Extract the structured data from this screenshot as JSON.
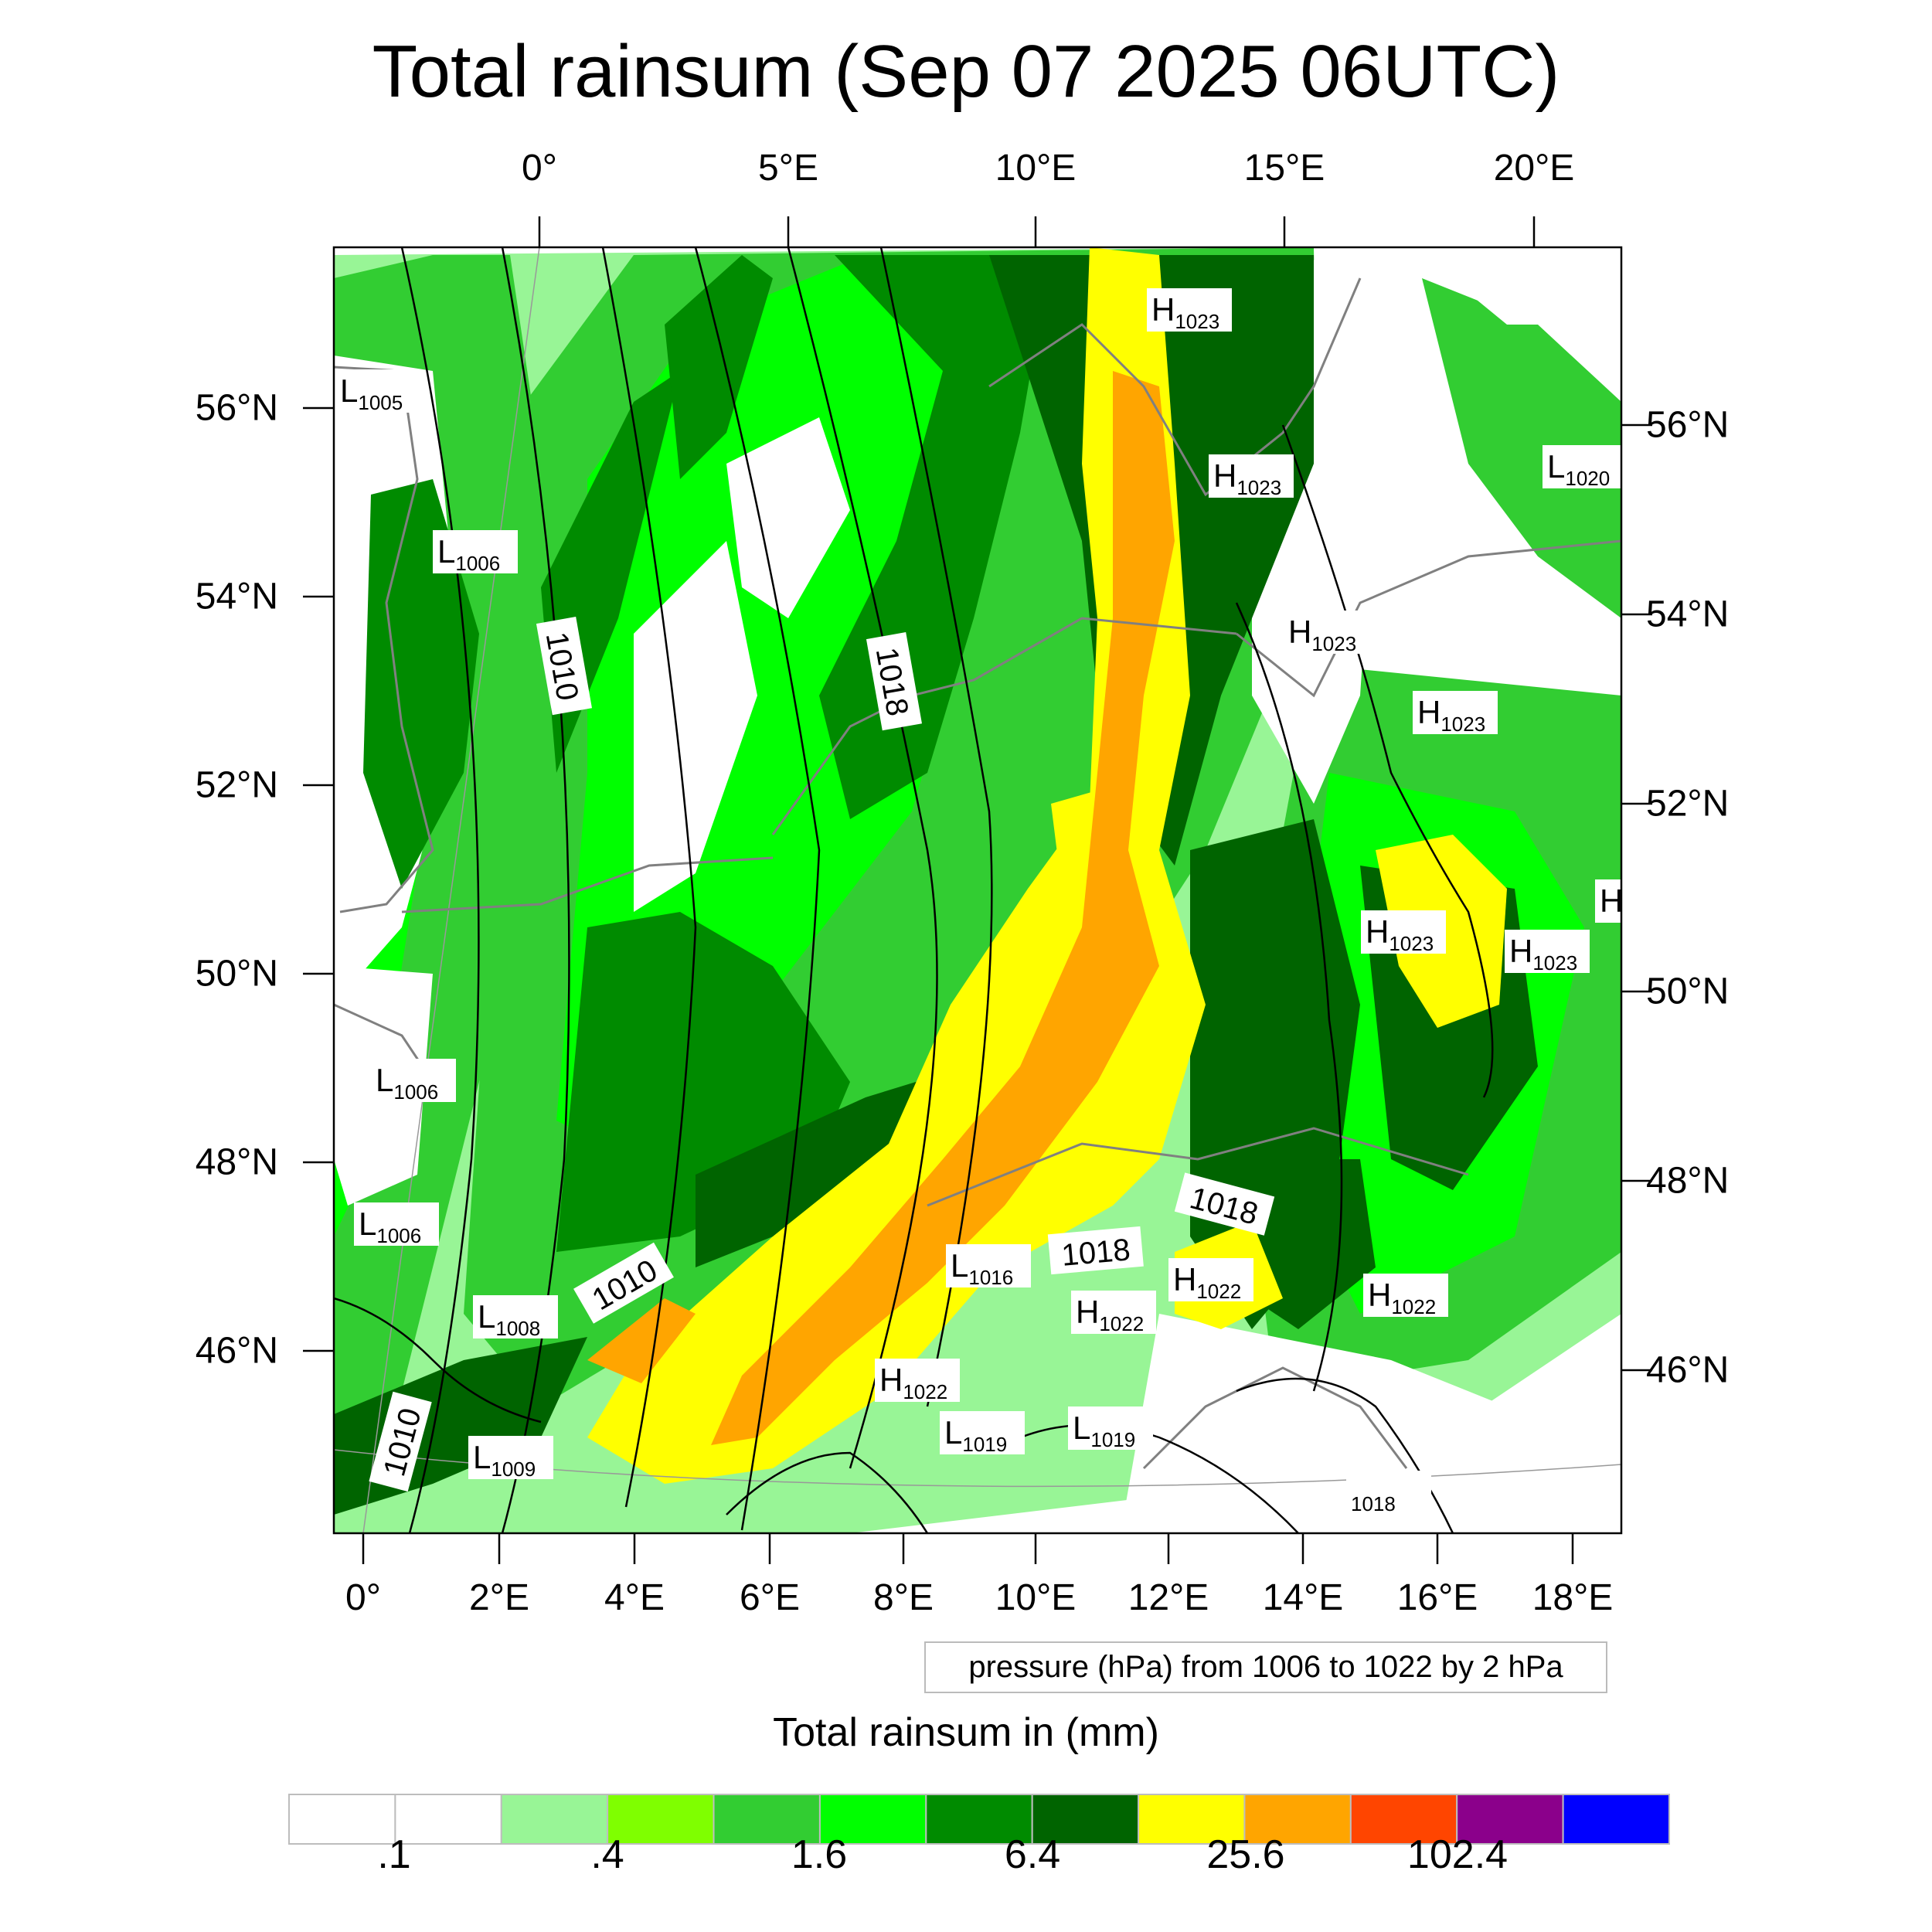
{
  "title": "Total rainsum (Sep 07 2025 06UTC)",
  "top_lon_ticks": [
    "0°",
    "5°E",
    "10°E",
    "15°E",
    "20°E"
  ],
  "bottom_lon_ticks": [
    "0°",
    "2°E",
    "4°E",
    "6°E",
    "8°E",
    "10°E",
    "12°E",
    "14°E",
    "16°E",
    "18°E"
  ],
  "left_lat_ticks": [
    "56°N",
    "54°N",
    "52°N",
    "50°N",
    "48°N",
    "46°N"
  ],
  "right_lat_ticks": [
    "56°N",
    "54°N",
    "52°N",
    "50°N",
    "48°N",
    "46°N"
  ],
  "info": "pressure (hPa) from 1006 to 1022 by 2 hPa",
  "colorbar": {
    "title": "Total rainsum in (mm)",
    "colors": [
      "#ffffff",
      "#ffffff",
      "#98f596",
      "#7fff00",
      "#32cd32",
      "#00ff00",
      "#008b00",
      "#006400",
      "#ffff00",
      "#ffa500",
      "#ff4500",
      "#8b008b",
      "#0000ff"
    ],
    "labels": [
      ".1",
      ".4",
      "1.6",
      "6.4",
      "25.6",
      "102.4"
    ]
  },
  "isobar_labels": [
    "1010",
    "1018",
    "1010",
    "1018",
    "1018",
    "1010"
  ],
  "pressure_centers": [
    {
      "type": "L",
      "value": "1005"
    },
    {
      "type": "L",
      "value": "1006"
    },
    {
      "type": "L",
      "value": "1006"
    },
    {
      "type": "L",
      "value": "1006"
    },
    {
      "type": "L",
      "value": "1008"
    },
    {
      "type": "L",
      "value": "1009"
    },
    {
      "type": "L",
      "value": "1016"
    },
    {
      "type": "L",
      "value": "1019"
    },
    {
      "type": "L",
      "value": "1019"
    },
    {
      "type": "L",
      "value": "1020"
    },
    {
      "type": "H",
      "value": "1023"
    },
    {
      "type": "H",
      "value": "1023"
    },
    {
      "type": "H",
      "value": "1023"
    },
    {
      "type": "H",
      "value": "1023"
    },
    {
      "type": "H",
      "value": "1023"
    },
    {
      "type": "H",
      "value": "1023"
    },
    {
      "type": "H",
      "value": "1022"
    },
    {
      "type": "H",
      "value": "1022"
    },
    {
      "type": "H",
      "value": "1022"
    },
    {
      "type": "H",
      "value": "1022"
    },
    {
      "type": "H",
      "value": ""
    },
    {
      "type": "",
      "value": "1018"
    }
  ]
}
